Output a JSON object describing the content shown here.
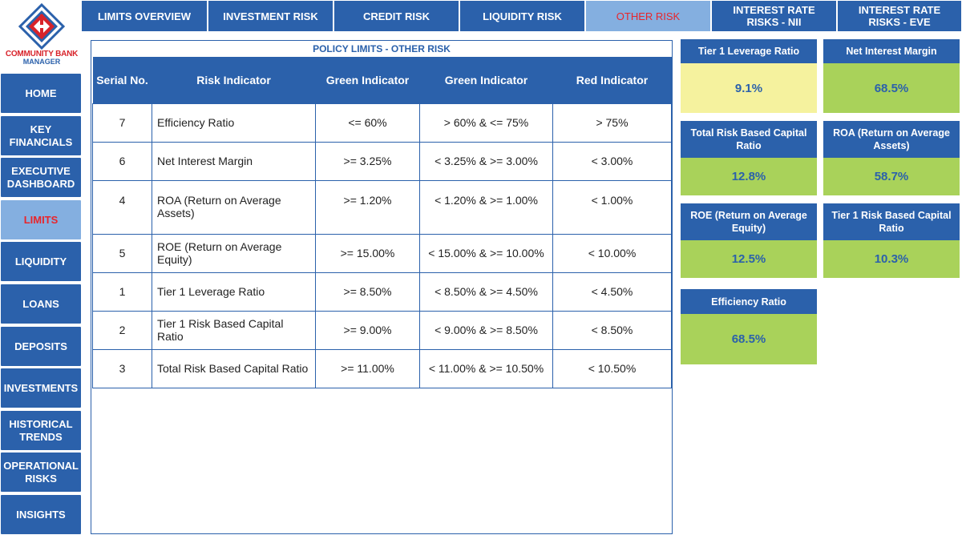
{
  "logo": {
    "line1": "COMMUNITY BANK",
    "line2": "MANAGER",
    "colors": {
      "red": "#d8232a",
      "blue": "#2b61ab"
    }
  },
  "sidebar": {
    "items": [
      {
        "label": "HOME",
        "active": false
      },
      {
        "label": "KEY FINANCIALS",
        "active": false
      },
      {
        "label": "EXECUTIVE DASHBOARD",
        "active": false
      },
      {
        "label": "LIMITS",
        "active": true
      },
      {
        "label": "LIQUIDITY",
        "active": false
      },
      {
        "label": "LOANS",
        "active": false
      },
      {
        "label": "DEPOSITS",
        "active": false
      },
      {
        "label": "INVESTMENTS",
        "active": false
      },
      {
        "label": "HISTORICAL TRENDS",
        "active": false
      },
      {
        "label": "OPERATIONAL RISKS",
        "active": false
      },
      {
        "label": "INSIGHTS",
        "active": false
      }
    ]
  },
  "tabs": [
    {
      "label": "LIMITS OVERVIEW",
      "active": false
    },
    {
      "label": "INVESTMENT RISK",
      "active": false
    },
    {
      "label": "CREDIT RISK",
      "active": false
    },
    {
      "label": "LIQUIDITY RISK",
      "active": false
    },
    {
      "label": "OTHER RISK",
      "active": true
    },
    {
      "label": "INTEREST RATE RISKS - NII",
      "active": false
    },
    {
      "label": "INTEREST RATE RISKS - EVE",
      "active": false
    }
  ],
  "policy": {
    "title": "POLICY LIMITS - OTHER RISK",
    "headers": [
      "Serial No.",
      "Risk Indicator",
      "Green Indicator",
      "Green Indicator",
      "Red Indicator"
    ],
    "rows": [
      [
        "7",
        "Efficiency Ratio",
        "<= 60%",
        "> 60% & <= 75%",
        "> 75%"
      ],
      [
        "6",
        "Net Interest Margin",
        ">= 3.25%",
        "< 3.25% & >= 3.00%",
        "< 3.00%"
      ],
      [
        "4",
        "ROA (Return on Average Assets)",
        ">= 1.20%",
        "< 1.20% & >= 1.00%",
        "< 1.00%"
      ],
      [
        "5",
        "ROE (Return on Average Equity)",
        ">= 15.00%",
        "< 15.00% & >= 10.00%",
        "< 10.00%"
      ],
      [
        "1",
        "Tier 1 Leverage Ratio",
        ">= 8.50%",
        "< 8.50% & >= 4.50%",
        "< 4.50%"
      ],
      [
        "2",
        "Tier 1 Risk Based Capital Ratio",
        ">= 9.00%",
        "< 9.00% & >= 8.50%",
        "< 8.50%"
      ],
      [
        "3",
        "Total Risk Based Capital Ratio",
        ">= 11.00%",
        "< 11.00% & >= 10.50%",
        "< 10.50%"
      ]
    ]
  },
  "cards": [
    {
      "title": "Tier 1 Leverage Ratio",
      "value": "9.1%",
      "status_color": "#f5f29e"
    },
    {
      "title": "Net Interest Margin",
      "value": "68.5%",
      "status_color": "#a9d25a"
    },
    {
      "title": "Total Risk Based Capital Ratio",
      "value": "12.8%",
      "status_color": "#a9d25a"
    },
    {
      "title": "ROA (Return on Average Assets)",
      "value": "58.7%",
      "status_color": "#a9d25a"
    },
    {
      "title": "ROE (Return on Average Equity)",
      "value": "12.5%",
      "status_color": "#a9d25a"
    },
    {
      "title": "Tier 1 Risk Based Capital Ratio",
      "value": "10.3%",
      "status_color": "#a9d25a"
    },
    {
      "title": "Efficiency Ratio",
      "value": "68.5%",
      "status_color": "#a9d25a"
    }
  ]
}
